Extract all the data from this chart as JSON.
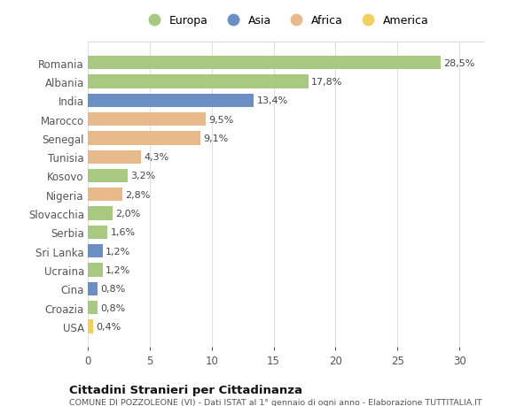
{
  "categories": [
    "Romania",
    "Albania",
    "India",
    "Marocco",
    "Senegal",
    "Tunisia",
    "Kosovo",
    "Nigeria",
    "Slovacchia",
    "Serbia",
    "Sri Lanka",
    "Ucraina",
    "Cina",
    "Croazia",
    "USA"
  ],
  "values": [
    28.5,
    17.8,
    13.4,
    9.5,
    9.1,
    4.3,
    3.2,
    2.8,
    2.0,
    1.6,
    1.2,
    1.2,
    0.8,
    0.8,
    0.4
  ],
  "labels": [
    "28,5%",
    "17,8%",
    "13,4%",
    "9,5%",
    "9,1%",
    "4,3%",
    "3,2%",
    "2,8%",
    "2,0%",
    "1,6%",
    "1,2%",
    "1,2%",
    "0,8%",
    "0,8%",
    "0,4%"
  ],
  "colors": [
    "#a8c97f",
    "#a8c97f",
    "#6b8fc4",
    "#e8b98a",
    "#e8b98a",
    "#e8b98a",
    "#a8c97f",
    "#e8b98a",
    "#a8c97f",
    "#a8c97f",
    "#6b8fc4",
    "#a8c97f",
    "#6b8fc4",
    "#a8c97f",
    "#f0d060"
  ],
  "legend_labels": [
    "Europa",
    "Asia",
    "Africa",
    "America"
  ],
  "legend_colors": [
    "#a8c97f",
    "#6b8fc4",
    "#e8b98a",
    "#f0d060"
  ],
  "title": "Cittadini Stranieri per Cittadinanza",
  "subtitle": "COMUNE DI POZZOLEONE (VI) - Dati ISTAT al 1° gennaio di ogni anno - Elaborazione TUTTITALIA.IT",
  "xlim": [
    0,
    32
  ],
  "xticks": [
    0,
    5,
    10,
    15,
    20,
    25,
    30
  ],
  "bg_color": "#ffffff",
  "grid_color": "#e0e0e0"
}
